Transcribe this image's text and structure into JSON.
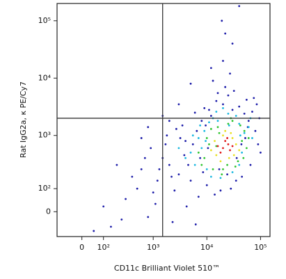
{
  "chart_data": {
    "type": "scatter",
    "x_label": "CD11c Brilliant Violet 510™",
    "y_label": "Rat IgG2a, κ PE/Cy7",
    "xscale": "biexponential",
    "yscale": "biexponential",
    "xlim": [
      -120,
      150000
    ],
    "ylim": [
      -110,
      200000
    ],
    "xticks": [
      0,
      {
        "value": 100,
        "label": "10²"
      },
      {
        "value": 1000,
        "label": "10³"
      },
      {
        "value": 10000,
        "label": "10⁴"
      },
      {
        "value": 100000,
        "label": "10⁵"
      }
    ],
    "yticks": [
      0,
      {
        "value": 100,
        "label": "10²"
      },
      {
        "value": 1000,
        "label": "10³"
      },
      {
        "value": 10000,
        "label": "10⁴"
      },
      {
        "value": 100000,
        "label": "10⁵"
      }
    ],
    "quadrant_gate": {
      "x": 1500,
      "y": 2000
    },
    "series": [
      {
        "color": "#1a1aa8",
        "x": [
          300,
          800,
          1200,
          2000,
          150,
          500,
          1500,
          3000,
          4000,
          2500,
          600,
          900,
          100,
          50,
          1800,
          3500,
          5000,
          6000,
          7000,
          8000,
          9000,
          10000,
          12000,
          15000,
          20000,
          25000,
          30000,
          40000,
          50000,
          60000,
          70000,
          80000,
          90000,
          100000,
          65000,
          45000,
          35000,
          28000,
          18000,
          14000,
          11000,
          9500,
          8500,
          7500,
          6500,
          5500,
          4500,
          3800,
          3200,
          2700,
          2200,
          1700,
          1300,
          1000,
          700,
          400,
          250,
          200,
          1100,
          2300,
          4200,
          6200,
          16000,
          22000,
          13000,
          27000,
          30000,
          19000,
          22000,
          40000,
          20000,
          5000,
          12000,
          75000,
          55000,
          95000,
          85000,
          32000,
          3000,
          2000,
          1500,
          800,
          600,
          10500,
          17000,
          24000,
          36000,
          52000,
          44000,
          58000
        ],
        "y": [
          50,
          -20,
          150,
          300,
          -60,
          100,
          400,
          200,
          800,
          90,
          250,
          600,
          20,
          -80,
          1000,
          1500,
          150,
          2500,
          60,
          1800,
          3000,
          120,
          2200,
          4000,
          3500,
          5000,
          2800,
          3200,
          2400,
          1800,
          2600,
          1200,
          700,
          500,
          300,
          180,
          150,
          100,
          90,
          70,
          2800,
          1500,
          220,
          400,
          1200,
          700,
          300,
          450,
          900,
          1300,
          180,
          700,
          250,
          80,
          400,
          180,
          -30,
          300,
          30,
          -40,
          20,
          -50,
          5500,
          7000,
          9000,
          12000,
          40000,
          100000,
          60000,
          180000,
          20000,
          8000,
          15000,
          4500,
          4200,
          2000,
          3500,
          6000,
          3500,
          1800,
          2200,
          1400,
          900,
          600,
          250,
          200,
          400,
          900,
          700,
          1400
        ]
      },
      {
        "color": "#18b8e0",
        "x": [
          5000,
          7000,
          9000,
          6000,
          11000,
          13000,
          8000,
          40000,
          50000,
          45000,
          60000,
          35000,
          25000,
          15000,
          10000,
          12000,
          18000,
          30000,
          40000,
          4000,
          3000,
          5500,
          70000,
          65000,
          20000,
          9500,
          16000,
          42000,
          26000,
          7500
        ],
        "y": [
          500,
          900,
          1200,
          300,
          1700,
          2000,
          600,
          1600,
          1100,
          500,
          1400,
          2200,
          2400,
          2600,
          250,
          180,
          170,
          220,
          300,
          400,
          600,
          1000,
          900,
          2000,
          3000,
          800,
          1800,
          1000,
          1500,
          1500
        ]
      },
      {
        "color": "#2ec42e",
        "x": [
          9000,
          45000,
          11000,
          50000,
          16000,
          38000,
          8000,
          25000,
          13000,
          60000,
          20000,
          30000,
          7000,
          17000,
          42000,
          10000,
          34000,
          24000,
          55000,
          12000,
          28000,
          19000,
          48000,
          15000
        ],
        "y": [
          400,
          800,
          700,
          1200,
          1400,
          350,
          300,
          1600,
          250,
          900,
          250,
          1800,
          500,
          1100,
          1500,
          900,
          280,
          300,
          600,
          1300,
          2000,
          200,
          400,
          650
        ]
      },
      {
        "color": "#e8e020",
        "x": [
          15000,
          30000,
          12000,
          35000,
          20000,
          26000,
          18000,
          40000,
          14000,
          22000,
          28000,
          32000
        ],
        "y": [
          450,
          900,
          550,
          700,
          1000,
          400,
          350,
          550,
          800,
          1200,
          1100,
          450
        ]
      },
      {
        "color": "#e01818",
        "x": [
          20000,
          25000,
          18000,
          30000,
          22000,
          27000,
          16000,
          24000
        ],
        "y": [
          600,
          700,
          500,
          650,
          800,
          550,
          650,
          900
        ]
      }
    ]
  }
}
